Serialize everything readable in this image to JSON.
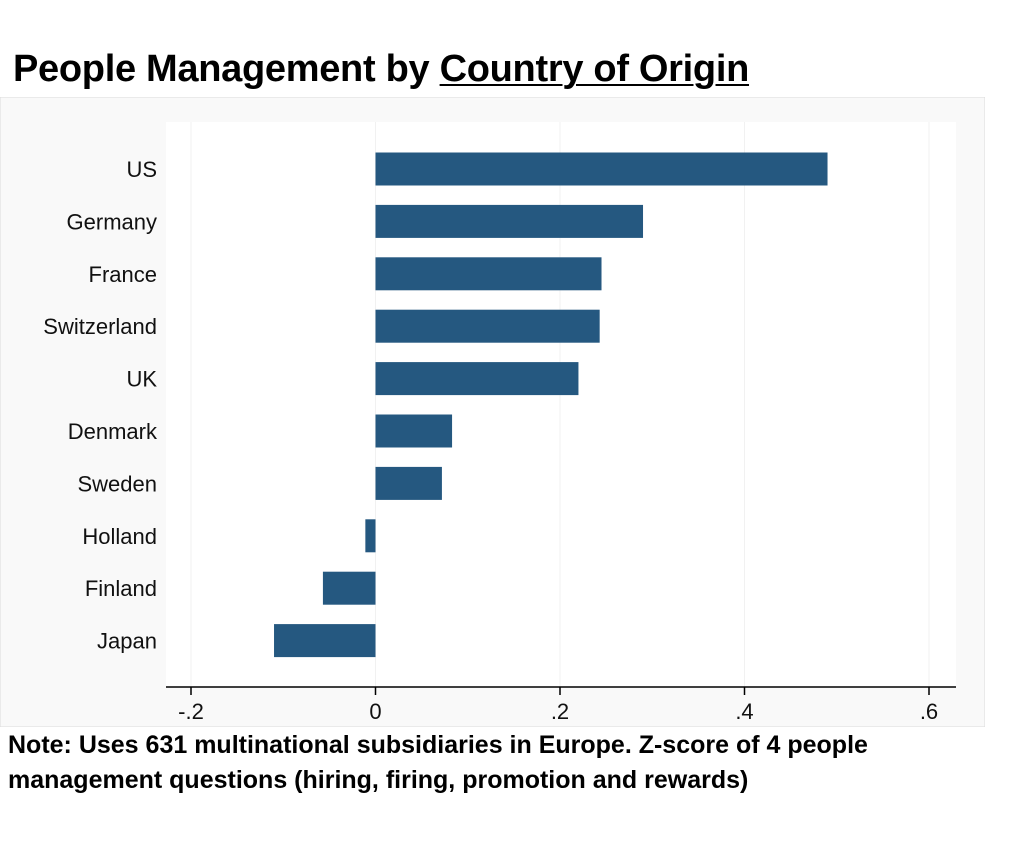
{
  "title": {
    "prefix": "People Management by ",
    "underlined": "Country of Origin"
  },
  "chart_data": {
    "type": "bar",
    "orientation": "horizontal",
    "categories": [
      "US",
      "Germany",
      "France",
      "Switzerland",
      "UK",
      "Denmark",
      "Sweden",
      "Holland",
      "Finland",
      "Japan"
    ],
    "values": [
      0.49,
      0.29,
      0.245,
      0.243,
      0.22,
      0.083,
      0.072,
      -0.011,
      -0.057,
      -0.11
    ],
    "xticks": [
      -0.2,
      0,
      0.2,
      0.4,
      0.6
    ],
    "xtick_labels": [
      "-.2",
      "0",
      ".2",
      ".4",
      ".6"
    ],
    "xlim": [
      -0.2,
      0.6
    ],
    "grid": true,
    "bar_color": "#255880",
    "plot_background": "#ffffff",
    "outer_background": "#f9f9f9"
  },
  "note": "Note: Uses 631 multinational subsidiaries in Europe. Z-score of 4 people management questions (hiring, firing, promotion and rewards)"
}
